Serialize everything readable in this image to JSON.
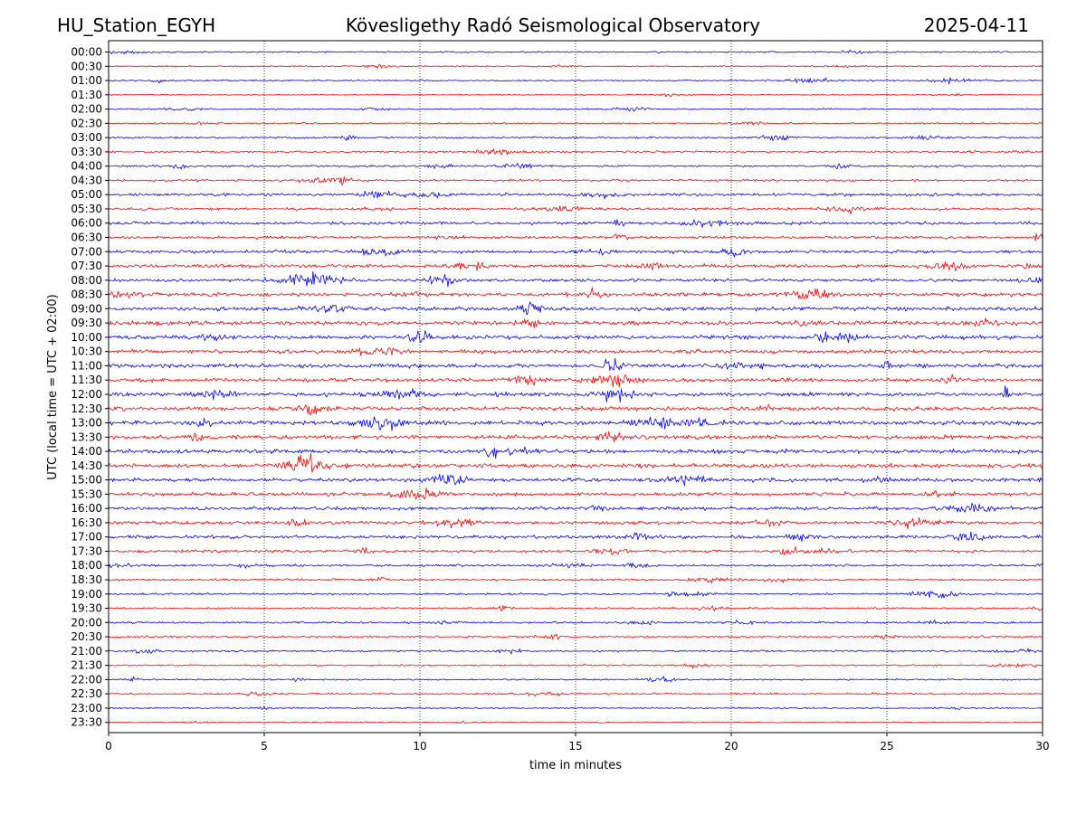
{
  "header": {
    "station": "HU_Station_EGYH",
    "title": "Kövesligethy Radó Seismological Observatory",
    "date": "2025-04-11"
  },
  "chart_data": {
    "type": "line",
    "title": "Kövesligethy Radó Seismological Observatory",
    "xlabel": "time in minutes",
    "ylabel": "UTC (local time = UTC + 02:00)",
    "xlim": [
      0,
      30
    ],
    "x_ticks": [
      "0",
      "5",
      "10",
      "15",
      "20",
      "25",
      "30"
    ],
    "x_tick_values": [
      0,
      5,
      10,
      15,
      20,
      25,
      30
    ],
    "grid": "vertical dotted lines at 5-minute intervals",
    "legend": "none",
    "series_colors": [
      "#0000ff",
      "#ff0000"
    ],
    "rows": [
      {
        "label": "00:00",
        "amplitude": 0.8
      },
      {
        "label": "00:30",
        "amplitude": 0.7
      },
      {
        "label": "01:00",
        "amplitude": 0.8
      },
      {
        "label": "01:30",
        "amplitude": 0.6
      },
      {
        "label": "02:00",
        "amplitude": 0.7
      },
      {
        "label": "02:30",
        "amplitude": 0.8
      },
      {
        "label": "03:00",
        "amplitude": 0.9
      },
      {
        "label": "03:30",
        "amplitude": 0.9
      },
      {
        "label": "04:00",
        "amplitude": 1.0
      },
      {
        "label": "04:30",
        "amplitude": 1.1
      },
      {
        "label": "05:00",
        "amplitude": 1.5
      },
      {
        "label": "05:30",
        "amplitude": 1.3
      },
      {
        "label": "06:00",
        "amplitude": 1.6
      },
      {
        "label": "06:30",
        "amplitude": 1.4
      },
      {
        "label": "07:00",
        "amplitude": 1.6
      },
      {
        "label": "07:30",
        "amplitude": 1.8
      },
      {
        "label": "08:00",
        "amplitude": 1.6
      },
      {
        "label": "08:30",
        "amplitude": 1.9
      },
      {
        "label": "09:00",
        "amplitude": 2.0
      },
      {
        "label": "09:30",
        "amplitude": 2.2
      },
      {
        "label": "10:00",
        "amplitude": 2.1
      },
      {
        "label": "10:30",
        "amplitude": 2.0
      },
      {
        "label": "11:00",
        "amplitude": 2.1
      },
      {
        "label": "11:30",
        "amplitude": 2.0
      },
      {
        "label": "12:00",
        "amplitude": 2.1
      },
      {
        "label": "12:30",
        "amplitude": 2.0
      },
      {
        "label": "13:00",
        "amplitude": 2.2
      },
      {
        "label": "13:30",
        "amplitude": 2.1
      },
      {
        "label": "14:00",
        "amplitude": 2.2
      },
      {
        "label": "14:30",
        "amplitude": 2.1
      },
      {
        "label": "15:00",
        "amplitude": 2.0
      },
      {
        "label": "15:30",
        "amplitude": 1.9
      },
      {
        "label": "16:00",
        "amplitude": 1.8
      },
      {
        "label": "16:30",
        "amplitude": 1.7
      },
      {
        "label": "17:00",
        "amplitude": 1.7
      },
      {
        "label": "17:30",
        "amplitude": 1.4
      },
      {
        "label": "18:00",
        "amplitude": 1.2
      },
      {
        "label": "18:30",
        "amplitude": 1.0
      },
      {
        "label": "19:00",
        "amplitude": 1.0
      },
      {
        "label": "19:30",
        "amplitude": 0.9
      },
      {
        "label": "20:00",
        "amplitude": 1.0
      },
      {
        "label": "20:30",
        "amplitude": 1.0
      },
      {
        "label": "21:00",
        "amplitude": 0.9
      },
      {
        "label": "21:30",
        "amplitude": 0.8
      },
      {
        "label": "22:00",
        "amplitude": 0.8
      },
      {
        "label": "22:30",
        "amplitude": 0.8
      },
      {
        "label": "23:00",
        "amplitude": 0.8
      },
      {
        "label": "23:30",
        "amplitude": 0.7
      }
    ]
  }
}
